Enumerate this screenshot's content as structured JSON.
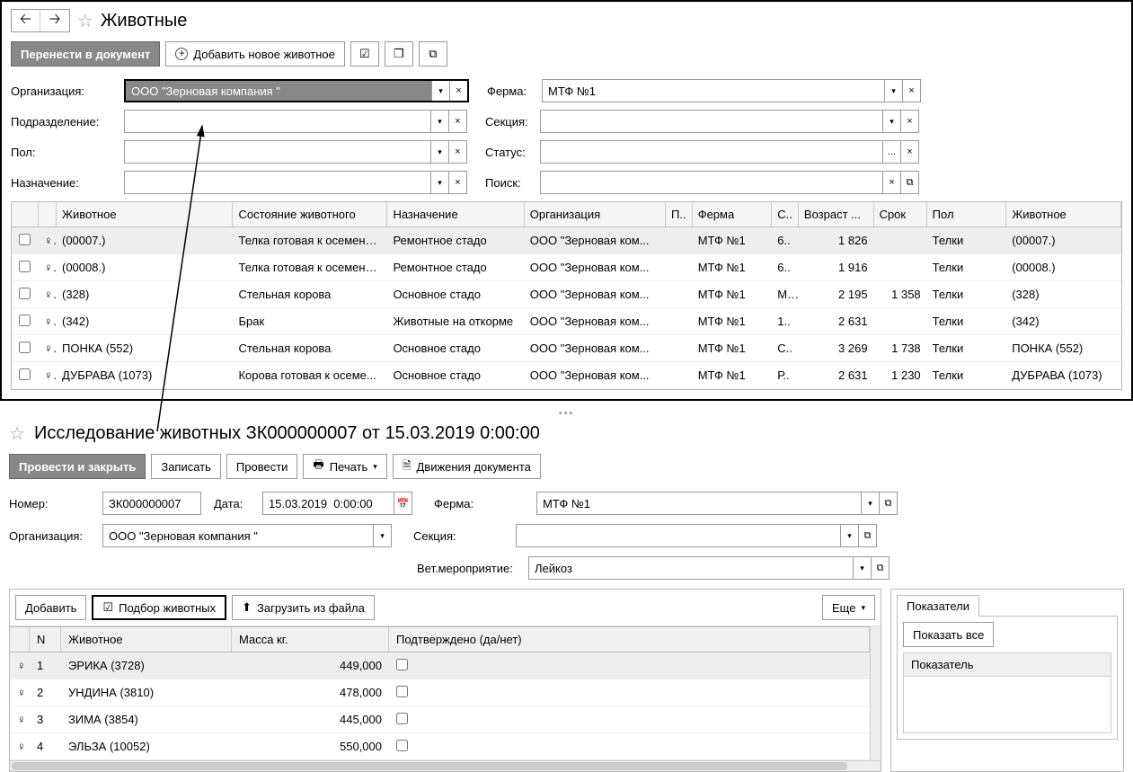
{
  "top": {
    "title": "Животные",
    "transfer_btn": "Перенести в документ",
    "add_btn": "Добавить новое животное",
    "filters": {
      "org_label": "Организация:",
      "org_value": "ООО \"Зерновая компания \"",
      "farm_label": "Ферма:",
      "farm_value": "МТФ №1",
      "div_label": "Подразделение:",
      "div_value": "",
      "section_label": "Секция:",
      "section_value": "",
      "sex_label": "Пол:",
      "sex_value": "",
      "status_label": "Статус:",
      "status_value": "",
      "purpose_label": "Назначение:",
      "purpose_value": "",
      "search_label": "Поиск:",
      "search_value": ""
    },
    "columns": {
      "animal": "Животное",
      "state": "Состояние животного",
      "purpose": "Назначение",
      "org": "Организация",
      "p": "П..",
      "farm": "Ферма",
      "s": "С..",
      "age": "Возраст ...",
      "term": "Срок",
      "sex": "Пол",
      "animal2": "Животное"
    },
    "col_widths": {
      "animal": 200,
      "state": 175,
      "purpose": 155,
      "org": 160,
      "p": 30,
      "farm": 90,
      "s": 30,
      "age": 85,
      "term": 60,
      "sex": 90,
      "animal2": 130
    },
    "rows": [
      {
        "sel": true,
        "animal": "(00007.)",
        "state": "Телка готовая к осемене...",
        "purpose": "Ремонтное стадо",
        "org": "ООО \"Зерновая ком...",
        "p": "",
        "farm": "МТФ №1",
        "s": "6..",
        "age": "1 826",
        "term": "",
        "sex": "Телки",
        "animal2": "(00007.)"
      },
      {
        "sel": false,
        "animal": "(00008.)",
        "state": "Телка готовая к осемене...",
        "purpose": "Ремонтное стадо",
        "org": "ООО \"Зерновая ком...",
        "p": "",
        "farm": "МТФ №1",
        "s": "6..",
        "age": "1 916",
        "term": "",
        "sex": "Телки",
        "animal2": "(00008.)"
      },
      {
        "sel": false,
        "animal": "(328)",
        "state": "Стельная корова",
        "purpose": "Основное стадо",
        "org": "ООО \"Зерновая ком...",
        "p": "",
        "farm": "МТФ №1",
        "s": "М..",
        "age": "2 195",
        "term": "1 358",
        "sex": "Телки",
        "animal2": "(328)"
      },
      {
        "sel": false,
        "animal": "(342)",
        "state": "Брак",
        "purpose": "Животные на откорме",
        "org": "ООО \"Зерновая ком...",
        "p": "",
        "farm": "МТФ №1",
        "s": "1..",
        "age": "2 631",
        "term": "",
        "sex": "Телки",
        "animal2": "(342)"
      },
      {
        "sel": false,
        "animal": "ПОНКА (552)",
        "state": "Стельная корова",
        "purpose": "Основное стадо",
        "org": "ООО \"Зерновая ком...",
        "p": "",
        "farm": "МТФ №1",
        "s": "С..",
        "age": "3 269",
        "term": "1 738",
        "sex": "Телки",
        "animal2": "ПОНКА (552)"
      },
      {
        "sel": false,
        "animal": "ДУБРАВА (1073)",
        "state": "Корова готовая к осеме...",
        "purpose": "Основное стадо",
        "org": "ООО \"Зерновая ком...",
        "p": "",
        "farm": "МТФ №1",
        "s": "Р..",
        "age": "2 631",
        "term": "1 230",
        "sex": "Телки",
        "animal2": "ДУБРАВА (1073)"
      }
    ]
  },
  "bottom": {
    "title": "Исследование животных ЗК000000007 от 15.03.2019 0:00:00",
    "post_close_btn": "Провести и закрыть",
    "save_btn": "Записать",
    "post_btn": "Провести",
    "print_btn": "Печать",
    "movements_btn": "Движения документа",
    "number_label": "Номер:",
    "number_value": "ЗК000000007",
    "date_label": "Дата:",
    "date_value": "15.03.2019  0:00:00",
    "farm_label": "Ферма:",
    "farm_value": "МТФ №1",
    "org_label": "Организация:",
    "org_value": "ООО \"Зерновая компания \"",
    "section_label": "Секция:",
    "section_value": "",
    "vet_label": "Вет.мероприятие:",
    "vet_value": "Лейкоз",
    "add_btn": "Добавить",
    "select_animals_btn": "Подбор животных",
    "load_file_btn": "Загрузить из файла",
    "more_btn": "Еще",
    "indicators_tab": "Показатели",
    "show_all_btn": "Показать все",
    "indicator_col": "Показатель",
    "columns": {
      "n": "N",
      "animal": "Животное",
      "mass": "Масса кг.",
      "confirmed": "Подтверждено (да/нет)"
    },
    "col_widths": {
      "g": 22,
      "n": 35,
      "animal": 190,
      "mass": 175,
      "confirmed": 510
    },
    "rows": [
      {
        "sel": true,
        "n": "1",
        "animal": "ЭРИКА (3728)",
        "mass": "449,000"
      },
      {
        "sel": false,
        "n": "2",
        "animal": "УНДИНА (3810)",
        "mass": "478,000"
      },
      {
        "sel": false,
        "n": "3",
        "animal": "ЗИМА (3854)",
        "mass": "445,000"
      },
      {
        "sel": false,
        "n": "4",
        "animal": "ЭЛЬЗА (10052)",
        "mass": "550,000"
      }
    ]
  },
  "icons": {
    "female": "♀"
  }
}
